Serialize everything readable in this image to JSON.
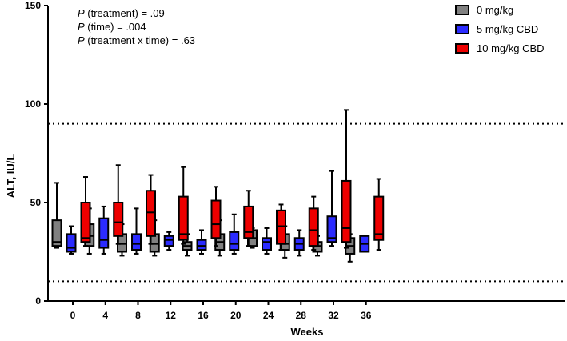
{
  "colors": {
    "g0": "#808080",
    "g5": "#2b2bff",
    "g10": "#ee0000"
  },
  "annotations": [
    {
      "p": "P",
      "rest": " (treatment) = .09"
    },
    {
      "p": "P",
      "rest": " (time) = .004"
    },
    {
      "p": "P",
      "rest": " (treatment x time) = .63"
    }
  ],
  "chart_data": {
    "type": "boxplot",
    "title": "",
    "xlabel": "Weeks",
    "ylabel": "ALT, IU/L",
    "ylim": [
      0,
      150
    ],
    "yticks": [
      0,
      50,
      100,
      150
    ],
    "reference_lines": [
      90,
      10
    ],
    "categories": [
      "0",
      "4",
      "8",
      "12",
      "16",
      "20",
      "24",
      "28",
      "32",
      "36"
    ],
    "series": [
      {
        "name": "0 mg/kg",
        "color_key": "g0",
        "boxes": [
          {
            "min": 27,
            "q1": 28,
            "median": 30,
            "q3": 41,
            "max": 60
          },
          {
            "min": 24,
            "q1": 28,
            "median": 33,
            "q3": 39,
            "max": 47
          },
          {
            "min": 23,
            "q1": 25,
            "median": 29,
            "q3": 34,
            "max": 39
          },
          {
            "min": 23,
            "q1": 25,
            "median": 29,
            "q3": 34,
            "max": 41
          },
          {
            "min": 23,
            "q1": 26,
            "median": 28,
            "q3": 30,
            "max": 34
          },
          {
            "min": 23,
            "q1": 26,
            "median": 30,
            "q3": 34,
            "max": 41
          },
          {
            "min": 27,
            "q1": 28,
            "median": 32,
            "q3": 36,
            "max": 37
          },
          {
            "min": 22,
            "q1": 26,
            "median": 29,
            "q3": 34,
            "max": 38
          },
          {
            "min": 23,
            "q1": 25,
            "median": 28,
            "q3": 30,
            "max": 33
          },
          {
            "min": 20,
            "q1": 24,
            "median": 28,
            "q3": 32,
            "max": 34
          }
        ]
      },
      {
        "name": "5 mg/kg CBD",
        "color_key": "g5",
        "boxes": [
          {
            "min": 24,
            "q1": 25,
            "median": 27,
            "q3": 34,
            "max": 38
          },
          {
            "min": 24,
            "q1": 27,
            "median": 31,
            "q3": 42,
            "max": 48
          },
          {
            "min": 24,
            "q1": 26,
            "median": 29,
            "q3": 34,
            "max": 47
          },
          {
            "min": 26,
            "q1": 28,
            "median": 31,
            "q3": 33,
            "max": 35
          },
          {
            "min": 24,
            "q1": 26,
            "median": 28,
            "q3": 31,
            "max": 36
          },
          {
            "min": 24,
            "q1": 26,
            "median": 29,
            "q3": 35,
            "max": 44
          },
          {
            "min": 24,
            "q1": 26,
            "median": 30,
            "q3": 32,
            "max": 37
          },
          {
            "min": 23,
            "q1": 26,
            "median": 29,
            "q3": 32,
            "max": 36
          },
          {
            "min": 28,
            "q1": 30,
            "median": 32,
            "q3": 43,
            "max": 66
          },
          {
            "min": 25,
            "q1": 25,
            "median": 29,
            "q3": 33,
            "max": 33
          }
        ]
      },
      {
        "name": "10 mg/kg CBD",
        "color_key": "g10",
        "boxes": [
          {
            "min": 28,
            "q1": 30,
            "median": 32,
            "q3": 50,
            "max": 63
          },
          {
            "min": 29,
            "q1": 33,
            "median": 40,
            "q3": 50,
            "max": 69
          },
          {
            "min": 29,
            "q1": 33,
            "median": 45,
            "q3": 56,
            "max": 64
          },
          {
            "min": 29,
            "q1": 31,
            "median": 34,
            "q3": 53,
            "max": 68
          },
          {
            "min": 28,
            "q1": 32,
            "median": 39,
            "q3": 51,
            "max": 58
          },
          {
            "min": 28,
            "q1": 32,
            "median": 35,
            "q3": 48,
            "max": 56
          },
          {
            "min": 26,
            "q1": 29,
            "median": 38,
            "q3": 46,
            "max": 49
          },
          {
            "min": 26,
            "q1": 28,
            "median": 36,
            "q3": 47,
            "max": 53
          },
          {
            "min": 27,
            "q1": 30,
            "median": 37,
            "q3": 61,
            "max": 97
          },
          {
            "min": 26,
            "q1": 31,
            "median": 34,
            "q3": 53,
            "max": 62
          }
        ]
      }
    ],
    "legend": {
      "placement": "top-right"
    }
  }
}
